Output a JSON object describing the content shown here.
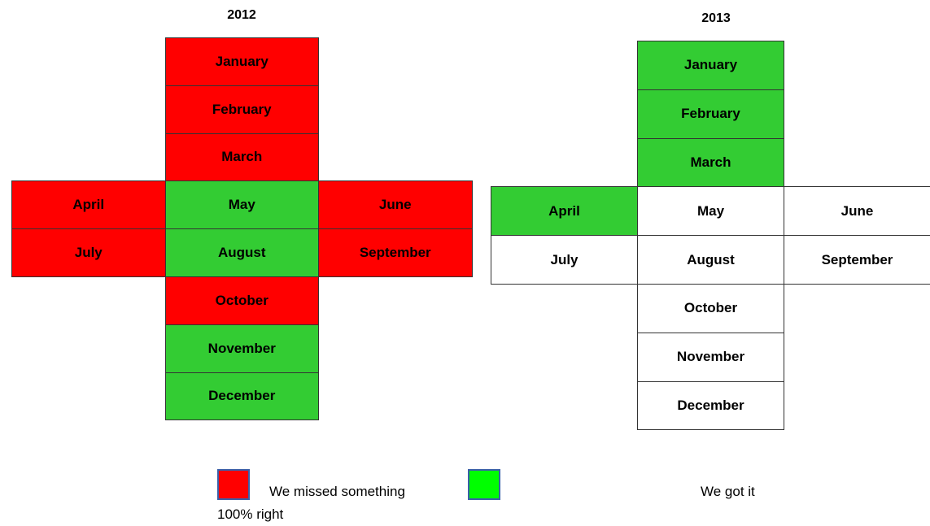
{
  "grids": [
    {
      "title": "2012",
      "cells": [
        {
          "label": "January",
          "color": "#ff0000"
        },
        {
          "label": "February",
          "color": "#ff0000"
        },
        {
          "label": "March",
          "color": "#ff0000"
        },
        {
          "label": "April",
          "color": "#ff0000"
        },
        {
          "label": "May",
          "color": "#33cc33"
        },
        {
          "label": "June",
          "color": "#ff0000"
        },
        {
          "label": "July",
          "color": "#ff0000"
        },
        {
          "label": "August",
          "color": "#33cc33"
        },
        {
          "label": "September",
          "color": "#ff0000"
        },
        {
          "label": "October",
          "color": "#ff0000"
        },
        {
          "label": "November",
          "color": "#33cc33"
        },
        {
          "label": "December",
          "color": "#33cc33"
        }
      ]
    },
    {
      "title": "2013",
      "cells": [
        {
          "label": "January",
          "color": "#33cc33"
        },
        {
          "label": "February",
          "color": "#33cc33"
        },
        {
          "label": "March",
          "color": "#33cc33"
        },
        {
          "label": "April",
          "color": "#33cc33"
        },
        {
          "label": "May",
          "color": "#ffffff"
        },
        {
          "label": "June",
          "color": "#ffffff"
        },
        {
          "label": "July",
          "color": "#ffffff"
        },
        {
          "label": "August",
          "color": "#ffffff"
        },
        {
          "label": "September",
          "color": "#ffffff"
        },
        {
          "label": "October",
          "color": "#ffffff"
        },
        {
          "label": "November",
          "color": "#ffffff"
        },
        {
          "label": "December",
          "color": "#ffffff"
        }
      ]
    }
  ],
  "legend": [
    {
      "text": "We missed something",
      "color": "#ff0000"
    },
    {
      "text": "We got it",
      "continuation": "100% right",
      "color": "#00ff00"
    }
  ]
}
